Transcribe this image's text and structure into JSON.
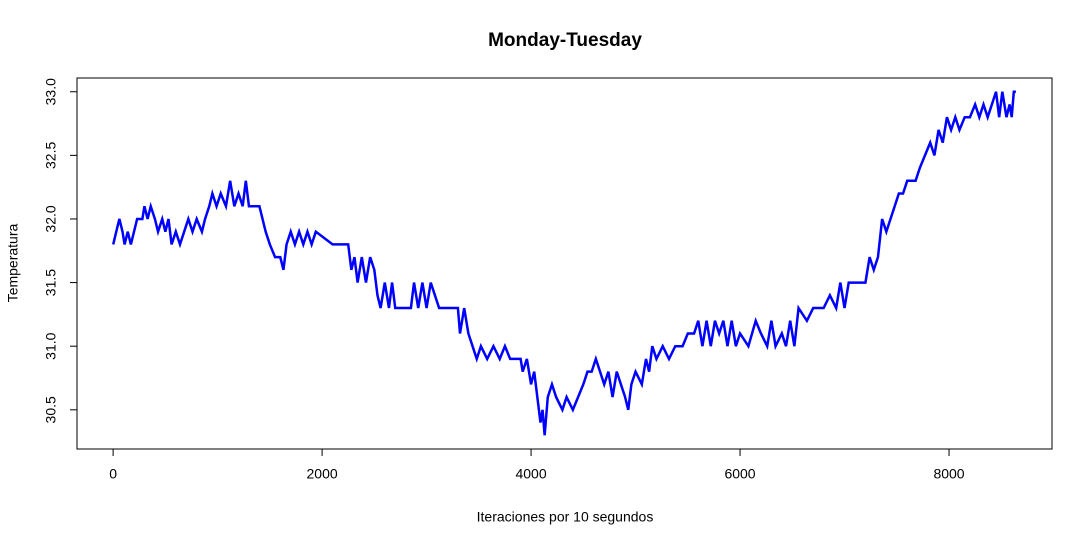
{
  "chart_data": {
    "type": "line",
    "title": "Monday-Tuesday",
    "x_label": "Iteraciones por 10 segundos",
    "y_label": "Temperatura",
    "color": "#0000ff",
    "x": [
      1,
      30,
      60,
      90,
      110,
      140,
      170,
      200,
      230,
      280,
      300,
      330,
      360,
      400,
      430,
      470,
      500,
      530,
      560,
      600,
      640,
      680,
      720,
      760,
      800,
      850,
      880,
      920,
      950,
      990,
      1030,
      1080,
      1120,
      1160,
      1200,
      1240,
      1270,
      1300,
      1400,
      1430,
      1460,
      1500,
      1550,
      1600,
      1630,
      1660,
      1700,
      1740,
      1780,
      1820,
      1860,
      1900,
      1940,
      2100,
      2250,
      2280,
      2310,
      2340,
      2380,
      2420,
      2460,
      2500,
      2530,
      2560,
      2600,
      2640,
      2670,
      2700,
      2850,
      2880,
      2920,
      2960,
      3000,
      3040,
      3080,
      3120,
      3300,
      3320,
      3360,
      3400,
      3440,
      3480,
      3520,
      3580,
      3640,
      3700,
      3750,
      3800,
      3900,
      3920,
      3960,
      4000,
      4030,
      4060,
      4090,
      4110,
      4130,
      4160,
      4200,
      4240,
      4300,
      4340,
      4400,
      4450,
      4500,
      4540,
      4580,
      4620,
      4660,
      4700,
      4740,
      4780,
      4820,
      4860,
      4900,
      4930,
      4960,
      5000,
      5060,
      5100,
      5130,
      5160,
      5200,
      5260,
      5320,
      5380,
      5450,
      5500,
      5560,
      5600,
      5640,
      5680,
      5720,
      5760,
      5800,
      5840,
      5880,
      5920,
      5960,
      6000,
      6080,
      6150,
      6200,
      6260,
      6300,
      6340,
      6400,
      6440,
      6480,
      6520,
      6560,
      6640,
      6700,
      6800,
      6860,
      6920,
      6960,
      7000,
      7040,
      7200,
      7240,
      7280,
      7320,
      7360,
      7400,
      7440,
      7480,
      7520,
      7560,
      7600,
      7680,
      7720,
      7770,
      7820,
      7860,
      7900,
      7940,
      7980,
      8020,
      8060,
      8100,
      8150,
      8200,
      8250,
      8290,
      8330,
      8370,
      8410,
      8450,
      8480,
      8510,
      8550,
      8580,
      8600,
      8620,
      8640
    ],
    "values": [
      31.8,
      31.9,
      32.0,
      31.9,
      31.8,
      31.9,
      31.8,
      31.9,
      32.0,
      32.0,
      32.1,
      32.0,
      32.1,
      32.0,
      31.9,
      32.0,
      31.9,
      32.0,
      31.8,
      31.9,
      31.8,
      31.9,
      32.0,
      31.9,
      32.0,
      31.9,
      32.0,
      32.1,
      32.2,
      32.1,
      32.2,
      32.1,
      32.3,
      32.1,
      32.2,
      32.1,
      32.3,
      32.1,
      32.1,
      32.0,
      31.9,
      31.8,
      31.7,
      31.7,
      31.6,
      31.8,
      31.9,
      31.8,
      31.9,
      31.8,
      31.9,
      31.8,
      31.9,
      31.8,
      31.8,
      31.6,
      31.7,
      31.5,
      31.7,
      31.5,
      31.7,
      31.6,
      31.4,
      31.3,
      31.5,
      31.3,
      31.5,
      31.3,
      31.3,
      31.5,
      31.3,
      31.5,
      31.3,
      31.5,
      31.4,
      31.3,
      31.3,
      31.1,
      31.3,
      31.1,
      31.0,
      30.9,
      31.0,
      30.9,
      31.0,
      30.9,
      31.0,
      30.9,
      30.9,
      30.8,
      30.9,
      30.7,
      30.8,
      30.6,
      30.4,
      30.5,
      30.3,
      30.6,
      30.7,
      30.6,
      30.5,
      30.6,
      30.5,
      30.6,
      30.7,
      30.8,
      30.8,
      30.9,
      30.8,
      30.7,
      30.8,
      30.6,
      30.8,
      30.7,
      30.6,
      30.5,
      30.7,
      30.8,
      30.7,
      30.9,
      30.8,
      31.0,
      30.9,
      31.0,
      30.9,
      31.0,
      31.0,
      31.1,
      31.1,
      31.2,
      31.0,
      31.2,
      31.0,
      31.2,
      31.1,
      31.2,
      31.0,
      31.2,
      31.0,
      31.1,
      31.0,
      31.2,
      31.1,
      31.0,
      31.2,
      31.0,
      31.1,
      31.0,
      31.2,
      31.0,
      31.3,
      31.2,
      31.3,
      31.3,
      31.4,
      31.3,
      31.5,
      31.3,
      31.5,
      31.5,
      31.7,
      31.6,
      31.7,
      32.0,
      31.9,
      32.0,
      32.1,
      32.2,
      32.2,
      32.3,
      32.3,
      32.4,
      32.5,
      32.6,
      32.5,
      32.7,
      32.6,
      32.8,
      32.7,
      32.8,
      32.7,
      32.8,
      32.8,
      32.9,
      32.8,
      32.9,
      32.8,
      32.9,
      33.0,
      32.8,
      33.0,
      32.8,
      32.9,
      32.8,
      33.0,
      33.0
    ],
    "xlim": [
      -345.6,
      8985.6
    ],
    "ylim": [
      30.192,
      33.108
    ],
    "xticks": [
      0,
      2000,
      4000,
      6000,
      8000
    ],
    "yticks": [
      30.5,
      {
        "value": 31,
        "label": "31.0"
      },
      31.5,
      {
        "value": 32,
        "label": "32.0"
      },
      32.5,
      {
        "value": 33,
        "label": "33.0"
      }
    ]
  }
}
